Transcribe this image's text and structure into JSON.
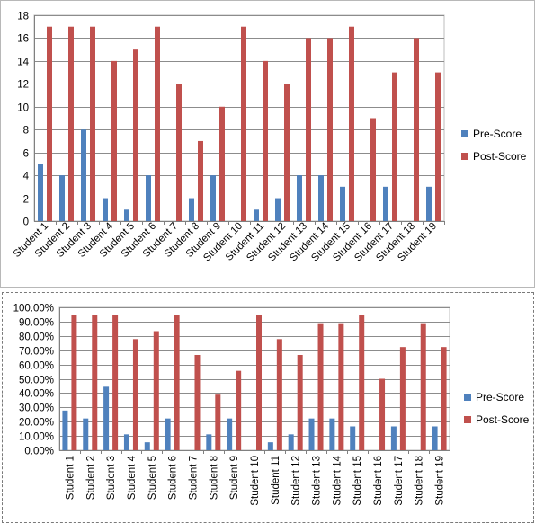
{
  "chart_data": [
    {
      "type": "bar",
      "categories": [
        "Student 1",
        "Student 2",
        "Student 3",
        "Student 4",
        "Student 5",
        "Student 6",
        "Student 7",
        "Student 8",
        "Student 9",
        "Student 10",
        "Student 11",
        "Student 12",
        "Student 13",
        "Student 14",
        "Student 15",
        "Student 16",
        "Student 17",
        "Student 18",
        "Student 19"
      ],
      "series": [
        {
          "name": "Pre-Score",
          "color": "#4F81BD",
          "values": [
            5,
            4,
            8,
            2,
            1,
            4,
            0,
            2,
            4,
            0,
            1,
            2,
            4,
            4,
            3,
            0,
            3,
            0,
            3
          ]
        },
        {
          "name": "Post-Score",
          "color": "#C0504D",
          "values": [
            17,
            17,
            17,
            14,
            15,
            17,
            12,
            7,
            10,
            17,
            14,
            12,
            16,
            16,
            17,
            9,
            13,
            16,
            13
          ]
        }
      ],
      "ylim": [
        0,
        18
      ],
      "yticks": [
        "0",
        "2",
        "4",
        "6",
        "8",
        "10",
        "12",
        "14",
        "16",
        "18"
      ],
      "grid": true,
      "legend": "right"
    },
    {
      "type": "bar",
      "categories": [
        "Student 1",
        "Student 2",
        "Student 3",
        "Student 4",
        "Student 5",
        "Student 6",
        "Student 7",
        "Student 8",
        "Student 9",
        "Student 10",
        "Student 11",
        "Student 12",
        "Student 13",
        "Student 14",
        "Student 15",
        "Student 16",
        "Student 17",
        "Student 18",
        "Student 19"
      ],
      "series": [
        {
          "name": "Pre-Score",
          "color": "#4F81BD",
          "values": [
            27.78,
            22.22,
            44.44,
            11.11,
            5.56,
            22.22,
            0,
            11.11,
            22.22,
            0,
            5.56,
            11.11,
            22.22,
            22.22,
            16.67,
            0,
            16.67,
            0,
            16.67
          ]
        },
        {
          "name": "Post-Score",
          "color": "#C0504D",
          "values": [
            94.44,
            94.44,
            94.44,
            77.78,
            83.33,
            94.44,
            66.67,
            38.89,
            55.56,
            94.44,
            77.78,
            66.67,
            88.89,
            88.89,
            94.44,
            50.0,
            72.22,
            88.89,
            72.22
          ]
        }
      ],
      "ylim": [
        0,
        100
      ],
      "yticks": [
        "0.00%",
        "10.00%",
        "20.00%",
        "30.00%",
        "40.00%",
        "50.00%",
        "60.00%",
        "70.00%",
        "80.00%",
        "90.00%",
        "100.00%"
      ],
      "grid": true,
      "legend": "right"
    }
  ]
}
